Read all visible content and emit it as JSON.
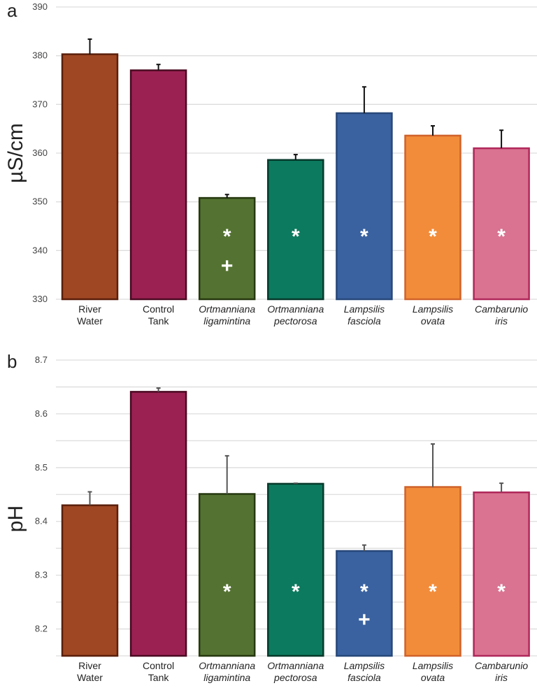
{
  "chart_data": [
    {
      "type": "bar",
      "panel_label": "a",
      "ylabel": "µS/cm",
      "ylim": [
        330,
        390
      ],
      "yticks": [
        330,
        340,
        350,
        360,
        370,
        380,
        390
      ],
      "grid": true,
      "categories": [
        {
          "line1": "River",
          "line2": "Water",
          "italic": false
        },
        {
          "line1": "Control",
          "line2": "Tank",
          "italic": false
        },
        {
          "line1": "Ortmanniana",
          "line2": "ligamintina",
          "italic": true
        },
        {
          "line1": "Ortmanniana",
          "line2": "pectorosa",
          "italic": true
        },
        {
          "line1": "Lampsilis",
          "line2": "fasciola",
          "italic": true
        },
        {
          "line1": "Lampsilis",
          "line2": "ovata",
          "italic": true
        },
        {
          "line1": "Cambarunio",
          "line2": "iris",
          "italic": true
        }
      ],
      "values": [
        380.3,
        377.0,
        350.8,
        358.6,
        368.2,
        363.6,
        361.0
      ],
      "error_upper": [
        383.4,
        378.2,
        351.5,
        359.7,
        373.6,
        365.6,
        364.7
      ],
      "annotations": [
        [],
        [],
        [
          "*",
          "+"
        ],
        [
          "*"
        ],
        [
          "*"
        ],
        [
          "*"
        ],
        [
          "*"
        ]
      ]
    },
    {
      "type": "bar",
      "panel_label": "b",
      "ylabel": "pH",
      "ylim": [
        8.15,
        8.7
      ],
      "yticks": [
        8.2,
        8.3,
        8.4,
        8.5,
        8.6,
        8.7
      ],
      "grid": true,
      "categories": [
        {
          "line1": "River",
          "line2": "Water",
          "italic": false
        },
        {
          "line1": "Control",
          "line2": "Tank",
          "italic": false
        },
        {
          "line1": "Ortmanniana",
          "line2": "ligamintina",
          "italic": true
        },
        {
          "line1": "Ortmanniana",
          "line2": "pectorosa",
          "italic": true
        },
        {
          "line1": "Lampsilis",
          "line2": "fasciola",
          "italic": true
        },
        {
          "line1": "Lampsilis",
          "line2": "ovata",
          "italic": true
        },
        {
          "line1": "Cambarunio",
          "line2": "iris",
          "italic": true
        }
      ],
      "values": [
        8.43,
        8.641,
        8.451,
        8.47,
        8.345,
        8.464,
        8.454
      ],
      "error_upper": [
        8.455,
        8.648,
        8.522,
        8.471,
        8.356,
        8.544,
        8.471
      ],
      "annotations": [
        [],
        [],
        [
          "*"
        ],
        [
          "*"
        ],
        [
          "*",
          "+"
        ],
        [
          "*"
        ],
        [
          "*"
        ]
      ]
    }
  ],
  "colors": {
    "fill": [
      "#9E4722",
      "#9B2153",
      "#547332",
      "#0C7A5E",
      "#3A62A0",
      "#F28C3A",
      "#D97391"
    ],
    "border": [
      "#5A1F0A",
      "#4A0A22",
      "#26380F",
      "#06392B",
      "#27487A",
      "#D0622A",
      "#B0285A"
    ],
    "error_bar_a": "#111111",
    "error_bar_b": "#555555",
    "grid": "#dddddd"
  }
}
